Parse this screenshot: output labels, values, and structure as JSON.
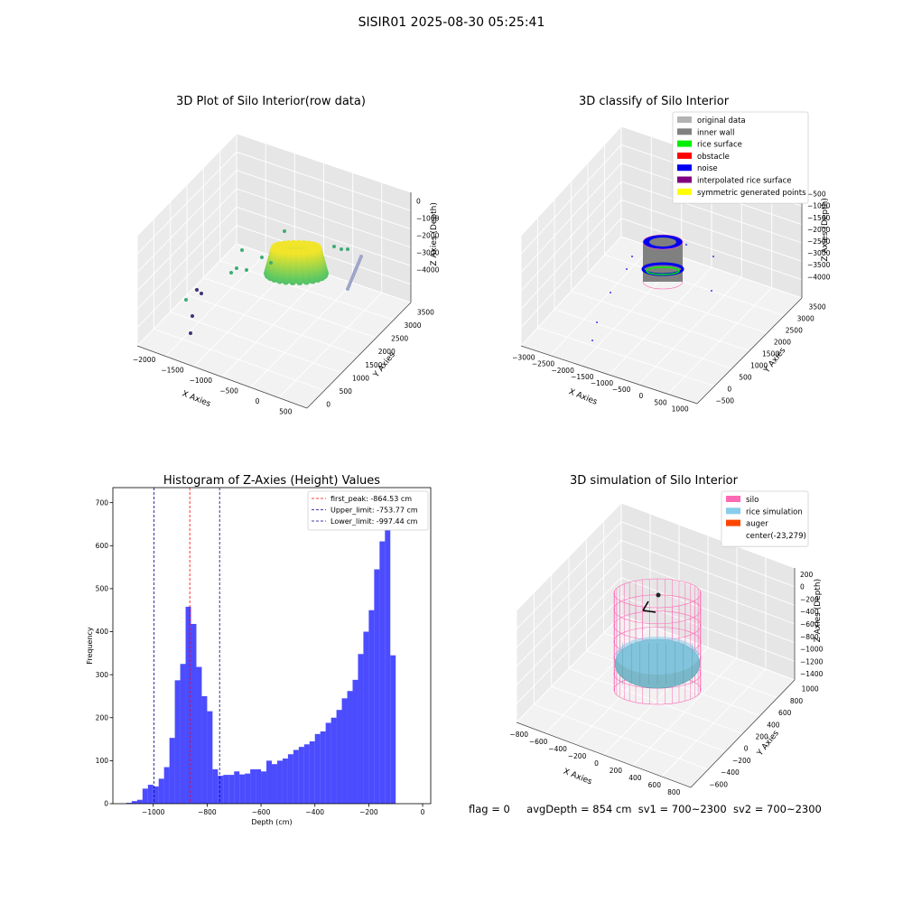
{
  "figure_title": "SISIR01 2025-08-30 05:25:41",
  "chart_data": [
    {
      "type": "scatter3d",
      "title": "3D Plot of Silo Interior(row data)",
      "xlabel": "X Axies",
      "ylabel": "Y Axies",
      "zlabel": "Z Axies (Depth)",
      "x_ticks": [
        "−2000",
        "−1500",
        "−1000",
        "−500",
        "0",
        "500"
      ],
      "y_ticks": [
        "0",
        "500",
        "1000",
        "1500",
        "2000",
        "2500",
        "3000",
        "3500"
      ],
      "z_ticks": [
        "0",
        "−1000",
        "−2000",
        "−3000",
        "−4000"
      ],
      "xlim": [
        -2300,
        600
      ],
      "ylim": [
        -200,
        3600
      ],
      "zlim": [
        -4300,
        200
      ],
      "colormap": "viridis"
    },
    {
      "type": "scatter3d",
      "title": "3D classify of Silo Interior",
      "xlabel": "X Axies",
      "ylabel": "Y Axies",
      "zlabel": "Z Axies (Depth)",
      "x_ticks": [
        "−3000",
        "−2500",
        "−2000",
        "−1500",
        "−1000",
        "−500",
        "0",
        "500",
        "1000"
      ],
      "y_ticks": [
        "−500",
        "0",
        "500",
        "1000",
        "1500",
        "2000",
        "2500",
        "3000",
        "3500"
      ],
      "z_ticks": [
        "−500",
        "−1000",
        "−1500",
        "−2000",
        "−2500",
        "−3000",
        "−3500",
        "−4000"
      ],
      "legend": [
        {
          "label": "original data",
          "color": "#b3b3b3"
        },
        {
          "label": "inner wall",
          "color": "#808080"
        },
        {
          "label": "rice surface",
          "color": "#00ee00"
        },
        {
          "label": "obstacle",
          "color": "#ff0000"
        },
        {
          "label": "noise",
          "color": "#0000ee"
        },
        {
          "label": "interpolated rice surface",
          "color": "#800080"
        },
        {
          "label": "symmetric generated points",
          "color": "#ffff00"
        }
      ],
      "legend_position": "top-right"
    },
    {
      "type": "bar",
      "title": "Histogram of Z-Axies (Height) Values",
      "xlabel": "Depth (cm)",
      "ylabel": "Frequency",
      "xlim": [
        -1150,
        30
      ],
      "ylim": [
        0,
        735
      ],
      "x_ticks": [
        -1000,
        -800,
        -600,
        -400,
        -200,
        0
      ],
      "y_ticks": [
        0,
        100,
        200,
        300,
        400,
        500,
        600,
        700
      ],
      "bin_start": -1100,
      "bin_width": 20,
      "values": [
        2,
        6,
        9,
        35,
        44,
        40,
        58,
        85,
        153,
        287,
        325,
        458,
        418,
        318,
        250,
        215,
        80,
        65,
        67,
        67,
        75,
        68,
        70,
        80,
        80,
        75,
        100,
        92,
        100,
        105,
        115,
        125,
        132,
        138,
        145,
        162,
        168,
        188,
        200,
        218,
        245,
        262,
        288,
        348,
        400,
        450,
        545,
        610,
        690,
        345
      ],
      "bar_color": "#0000ff",
      "lines": [
        {
          "label": "first_peak: -864.53 cm",
          "x": -864.53,
          "color": "#ff0000"
        },
        {
          "label": "Upper_limit: -753.77 cm",
          "x": -753.77,
          "color": "#00008b"
        },
        {
          "label": "Lower_limit: -997.44 cm",
          "x": -997.44,
          "color": "#00008b"
        }
      ],
      "legend_position": "top-right"
    },
    {
      "type": "surface3d",
      "title": "3D simulation of Silo Interior",
      "xlabel": "X Axies",
      "ylabel": "Y Axies",
      "zlabel": "Z Axies (Depth)",
      "x_ticks": [
        "−800",
        "−600",
        "−400",
        "−200",
        "0",
        "200",
        "400",
        "600",
        "800"
      ],
      "y_ticks": [
        "−600",
        "−400",
        "−200",
        "0",
        "200",
        "400",
        "600",
        "800",
        "1000"
      ],
      "z_ticks": [
        "200",
        "0",
        "−200",
        "−400",
        "−600",
        "−800",
        "−1000",
        "−1200",
        "−1400"
      ],
      "legend": [
        {
          "label": "silo",
          "color": "#ff69b4"
        },
        {
          "label": "rice simulation",
          "color": "#87ceeb"
        },
        {
          "label": "auger",
          "color": "#ff4500"
        },
        {
          "label": "center(-23,279)",
          "color": ""
        }
      ],
      "legend_position": "top-right"
    }
  ],
  "status_line": {
    "flag": "flag = 0",
    "avg_depth": "avgDepth = 854 cm",
    "sv1": "sv1 = 700~2300",
    "sv2": "sv2 = 700~2300"
  }
}
